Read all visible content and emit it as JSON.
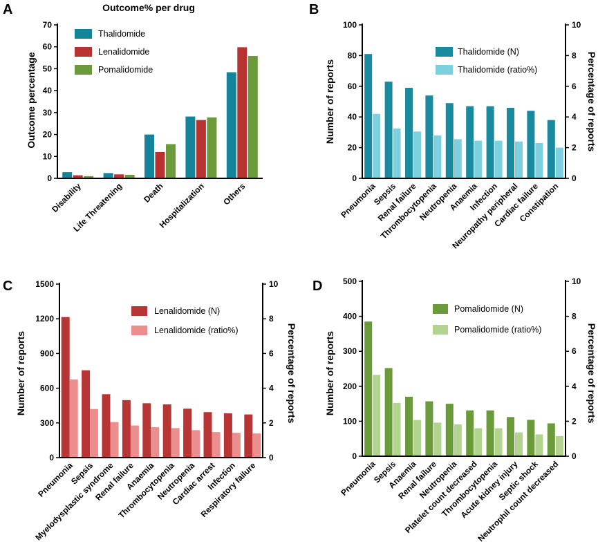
{
  "figure": {
    "panels": [
      {
        "letter": "A",
        "title": "Outcome% per drug",
        "ylabel": "Outcome percentage",
        "ylim": [
          0,
          70
        ],
        "yticks": [
          "0",
          "10",
          "20",
          "30",
          "40",
          "50",
          "60",
          "70"
        ]
      },
      {
        "letter": "B",
        "ylabel": "Number of reports",
        "y2label": "Percentage of reports",
        "ylim": [
          0,
          100
        ],
        "y2lim": [
          0,
          10
        ],
        "yticks": [
          "0",
          "20",
          "40",
          "60",
          "80",
          "100"
        ],
        "y2ticks": [
          "0",
          "2",
          "4",
          "6",
          "8",
          "10"
        ]
      },
      {
        "letter": "C",
        "ylabel": "Number of reports",
        "y2label": "Percentage of reports",
        "ylim": [
          0,
          1500
        ],
        "y2lim": [
          0,
          10
        ],
        "yticks": [
          "0",
          "300",
          "600",
          "900",
          "1200",
          "1500"
        ],
        "y2ticks": [
          "0",
          "2",
          "4",
          "6",
          "8",
          "10"
        ]
      },
      {
        "letter": "D",
        "ylabel": "Number of reports",
        "y2label": "Percentage of reports",
        "ylim": [
          0,
          500
        ],
        "y2lim": [
          0,
          10
        ],
        "yticks": [
          "0",
          "100",
          "200",
          "300",
          "400",
          "500"
        ],
        "y2ticks": [
          "0",
          "2",
          "4",
          "6",
          "8",
          "10"
        ]
      }
    ]
  },
  "chart_data": [
    {
      "type": "bar",
      "panel": "A",
      "title": "Outcome% per drug",
      "xlabel": "",
      "ylabel": "Outcome percentage",
      "ylim": [
        0,
        70
      ],
      "legend_position": "top-left",
      "categories": [
        "Disability",
        "Life Threatening",
        "Death",
        "Hospitalization",
        "Others"
      ],
      "series": [
        {
          "name": "Thalidomide",
          "color": "#14849c",
          "values": [
            2.8,
            2.4,
            20.0,
            28.2,
            48.4
          ]
        },
        {
          "name": "Lenalidomide",
          "color": "#b83232",
          "values": [
            1.4,
            1.8,
            12.0,
            26.6,
            59.8
          ]
        },
        {
          "name": "Pomalidomide",
          "color": "#6b9a3a",
          "values": [
            1.0,
            1.6,
            15.6,
            27.8,
            55.8
          ]
        }
      ]
    },
    {
      "type": "bar",
      "panel": "B",
      "ylabel": "Number of reports",
      "y2label": "Percentage of reports",
      "ylim": [
        0,
        100
      ],
      "y2lim": [
        0,
        10
      ],
      "legend_position": "top-right",
      "categories": [
        "Pneumonia",
        "Sepsis",
        "Renal failure",
        "Thrombocytopenia",
        "Neutropenia",
        "Anaemia",
        "Infection",
        "Neuropathy peripheral",
        "Cardiac failure",
        "Constipation"
      ],
      "series": [
        {
          "name": "Thalidomide (N)",
          "axis": "left",
          "color": "#1a8a9e",
          "values": [
            81,
            63,
            59,
            54,
            49,
            47,
            47,
            46,
            44,
            38
          ]
        },
        {
          "name": "Thalidomide (ratio%)",
          "axis": "right",
          "color": "#7dd0de",
          "values": [
            4.2,
            3.25,
            3.05,
            2.8,
            2.55,
            2.45,
            2.45,
            2.4,
            2.3,
            2.0
          ]
        }
      ]
    },
    {
      "type": "bar",
      "panel": "C",
      "ylabel": "Number of reports",
      "y2label": "Percentage of reports",
      "ylim": [
        0,
        1500
      ],
      "y2lim": [
        0,
        10
      ],
      "legend_position": "top-right",
      "categories": [
        "Pneumonia",
        "Sepsis",
        "Myelodysplastic syndrome",
        "Renal failure",
        "Anaemia",
        "Thrombocytopenia",
        "Neutropenia",
        "Cardiac arrest",
        "Infection",
        "Respiratory failure"
      ],
      "series": [
        {
          "name": "Lenalidomide (N)",
          "axis": "left",
          "color": "#b83535",
          "values": [
            1215,
            755,
            548,
            497,
            470,
            460,
            423,
            393,
            383,
            373
          ]
        },
        {
          "name": "Lenalidomide (ratio%)",
          "axis": "right",
          "color": "#ec8e8e",
          "values": [
            4.5,
            2.8,
            2.05,
            1.85,
            1.75,
            1.7,
            1.58,
            1.47,
            1.43,
            1.39
          ]
        }
      ]
    },
    {
      "type": "bar",
      "panel": "D",
      "ylabel": "Number of reports",
      "y2label": "Percentage of reports",
      "ylim": [
        0,
        500
      ],
      "y2lim": [
        0,
        10
      ],
      "legend_position": "top-right",
      "categories": [
        "Pneumonia",
        "Sepsis",
        "Anaemia",
        "Renal failure",
        "Neutropenia",
        "Platelet count decreased",
        "Thrombocytopenia",
        "Acute kidney injury",
        "Septic shock",
        "Neutrophil count decreased"
      ],
      "series": [
        {
          "name": "Pomalidomide (N)",
          "axis": "left",
          "color": "#6a9a3a",
          "values": [
            385,
            252,
            170,
            157,
            150,
            131,
            131,
            112,
            104,
            94
          ]
        },
        {
          "name": "Pomalidomide (ratio%)",
          "axis": "right",
          "color": "#b3d48f",
          "values": [
            4.65,
            3.05,
            2.07,
            1.92,
            1.82,
            1.6,
            1.6,
            1.36,
            1.25,
            1.15
          ]
        }
      ]
    }
  ]
}
